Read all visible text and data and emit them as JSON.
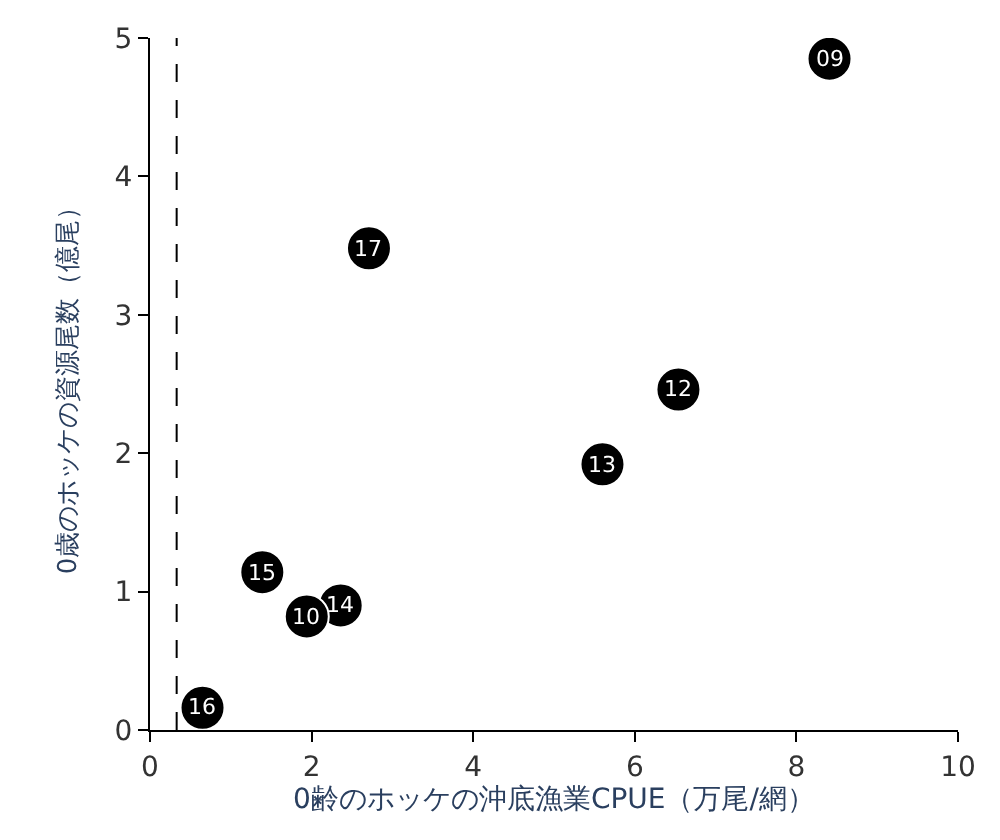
{
  "chart_data": {
    "type": "scatter",
    "xlabel": "0齢のホッケの沖底漁業CPUE（万尾/網）",
    "ylabel": "0歳のホッケの資源尾数（億尾）",
    "x": [
      8.41,
      2.71,
      6.54,
      5.6,
      1.39,
      2.36,
      1.94,
      0.65
    ],
    "values": [
      4.85,
      3.48,
      2.46,
      1.92,
      1.14,
      0.9,
      0.82,
      0.16
    ],
    "color": "#000000",
    "marker": "circle",
    "xlim": [
      0,
      10
    ],
    "xticks": [
      0,
      2,
      4,
      6,
      8,
      10
    ],
    "ylim": [
      0,
      5
    ],
    "yticks": [
      0,
      1,
      2,
      3,
      4,
      5
    ],
    "ref_lines": [
      {
        "axis": "x",
        "value": 0.33,
        "color": "#000000",
        "line_style": "dashed"
      }
    ],
    "annotations": [
      {
        "text": "09",
        "x": 8.41,
        "y": 4.85
      },
      {
        "text": "17",
        "x": 2.71,
        "y": 3.48
      },
      {
        "text": "12",
        "x": 6.54,
        "y": 2.46
      },
      {
        "text": "13",
        "x": 5.6,
        "y": 1.92
      },
      {
        "text": "15",
        "x": 1.39,
        "y": 1.14
      },
      {
        "text": "14",
        "x": 2.36,
        "y": 0.9
      },
      {
        "text": "10",
        "x": 1.94,
        "y": 0.82
      },
      {
        "text": "16",
        "x": 0.65,
        "y": 0.16
      }
    ]
  }
}
